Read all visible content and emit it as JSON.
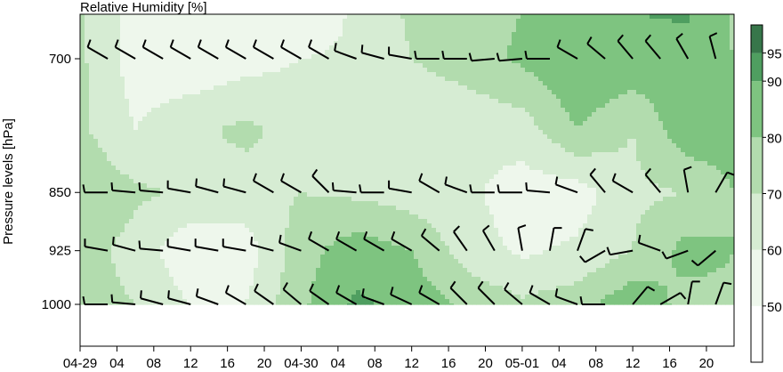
{
  "chart_data": {
    "type": "heatmap",
    "title": "Relative Humidity [%]",
    "ylabel": "Pressure levels [hPa]",
    "y_axis": {
      "levels_hpa": [
        700,
        850,
        925,
        1000
      ],
      "tick_labels": [
        "700",
        "850",
        "925",
        "1000"
      ],
      "scale": "log-pressure"
    },
    "x_axis": {
      "start": "04-29 00",
      "end": "05-01 23",
      "tick_labels": [
        "04-29",
        "04",
        "08",
        "12",
        "16",
        "20",
        "04-30",
        "04",
        "08",
        "12",
        "16",
        "20",
        "05-01",
        "04",
        "08",
        "12",
        "16",
        "20"
      ],
      "tick_hours": [
        0,
        4,
        8,
        12,
        16,
        20,
        24,
        28,
        32,
        36,
        40,
        44,
        48,
        52,
        56,
        60,
        64,
        68
      ],
      "xlim_hours": [
        0,
        71
      ]
    },
    "colorbar": {
      "labels": [
        "50",
        "60",
        "70",
        "80",
        "90",
        "95"
      ],
      "label_values": [
        50,
        60,
        70,
        80,
        90,
        95
      ],
      "range": [
        40,
        100
      ],
      "bins": [
        {
          "min": 40,
          "max": 50,
          "color": "#ffffff"
        },
        {
          "min": 50,
          "max": 60,
          "color": "#eef7ec"
        },
        {
          "min": 60,
          "max": 70,
          "color": "#d6ecd3"
        },
        {
          "min": 70,
          "max": 80,
          "color": "#b2dcae"
        },
        {
          "min": 80,
          "max": 90,
          "color": "#7ec480"
        },
        {
          "min": 90,
          "max": 95,
          "color": "#4f9e60"
        },
        {
          "min": 95,
          "max": 100,
          "color": "#37764a"
        }
      ]
    },
    "grid_hours": [
      0,
      6,
      12,
      18,
      24,
      30,
      36,
      42,
      48,
      54,
      60,
      66,
      71
    ],
    "grid_levels": [
      650,
      700,
      775,
      850,
      925,
      1000
    ],
    "humidity": [
      [
        72,
        55,
        50,
        52,
        50,
        62,
        72,
        75,
        80,
        85,
        90,
        92,
        78
      ],
      [
        72,
        55,
        52,
        56,
        60,
        62,
        70,
        75,
        82,
        90,
        88,
        85,
        80
      ],
      [
        72,
        60,
        68,
        72,
        66,
        64,
        62,
        62,
        65,
        80,
        70,
        88,
        85
      ],
      [
        78,
        72,
        68,
        66,
        70,
        68,
        65,
        62,
        55,
        55,
        68,
        70,
        80
      ],
      [
        75,
        66,
        52,
        55,
        76,
        86,
        80,
        65,
        58,
        62,
        70,
        84,
        80
      ],
      [
        74,
        70,
        60,
        60,
        78,
        92,
        86,
        78,
        72,
        76,
        88,
        76,
        78
      ]
    ],
    "wind_barbs": {
      "levels_hpa": [
        700,
        850,
        925,
        1000
      ],
      "hours": [
        0,
        3,
        6,
        9,
        12,
        15,
        18,
        21,
        24,
        27,
        30,
        33,
        36,
        39,
        42,
        45,
        48,
        51,
        54,
        57,
        60,
        63,
        66,
        69
      ],
      "direction_deg": [
        [
          300,
          300,
          300,
          300,
          300,
          300,
          300,
          300,
          300,
          300,
          290,
          285,
          280,
          270,
          270,
          265,
          265,
          270,
          300,
          310,
          320,
          320,
          330,
          345
        ],
        [
          270,
          270,
          275,
          275,
          280,
          285,
          285,
          300,
          300,
          315,
          275,
          270,
          280,
          300,
          290,
          270,
          270,
          275,
          290,
          320,
          300,
          320,
          350,
          30
        ],
        [
          280,
          280,
          285,
          275,
          280,
          280,
          280,
          285,
          290,
          300,
          300,
          300,
          300,
          310,
          325,
          330,
          350,
          10,
          20,
          240,
          260,
          290,
          250,
          230
        ],
        [
          270,
          270,
          275,
          285,
          285,
          290,
          300,
          305,
          310,
          305,
          300,
          290,
          295,
          300,
          315,
          315,
          310,
          300,
          290,
          270,
          40,
          60,
          10,
          20
        ]
      ]
    }
  }
}
